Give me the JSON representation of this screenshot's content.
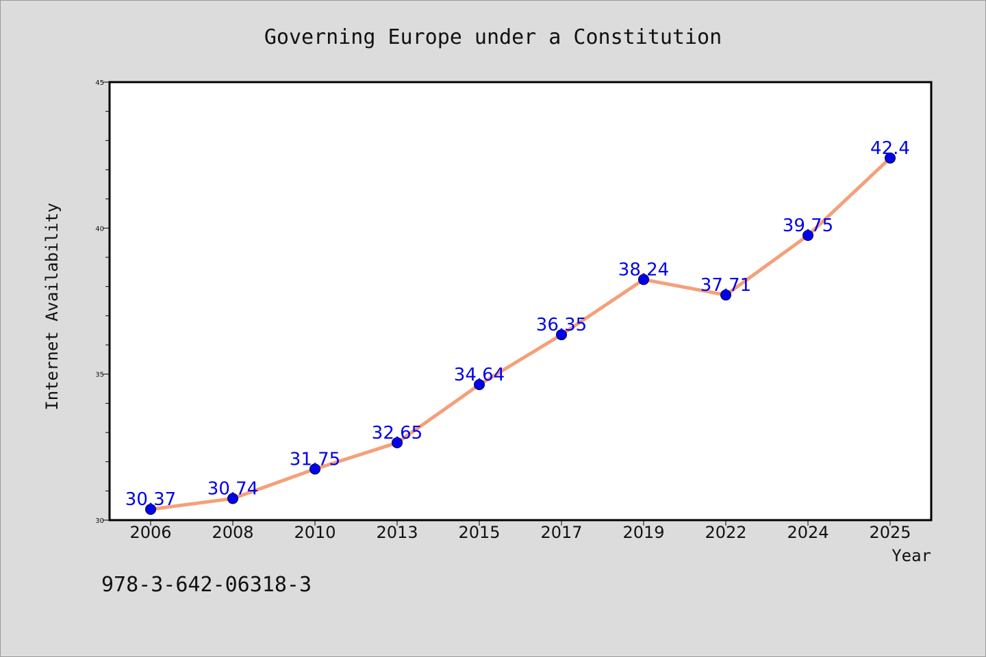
{
  "chart_data": {
    "type": "line",
    "title": "Governing Europe under a Constitution",
    "xlabel": "Year",
    "ylabel": "Internet Availability",
    "categories": [
      "2006",
      "2008",
      "2010",
      "2013",
      "2015",
      "2017",
      "2019",
      "2022",
      "2024",
      "2025"
    ],
    "series": [
      {
        "values": [
          30.37,
          30.74,
          31.75,
          32.65,
          34.64,
          36.35,
          38.24,
          37.71,
          39.75,
          42.4
        ],
        "data_labels": [
          "30.37",
          "30.74",
          "31.75",
          "32.65",
          "34.64",
          "36.35",
          "38.24",
          "37.71",
          "39.75",
          "42.4"
        ]
      }
    ],
    "ylim": [
      30,
      45
    ],
    "y_ticks": [
      30,
      35,
      40,
      45
    ],
    "y_tick_labels": [
      "30",
      "35",
      "40",
      "45"
    ],
    "grid": false,
    "colors": {
      "line": "#f4a07a",
      "marker": "#0000ee",
      "data_label": "#0000ee",
      "background": "#dcdcdc",
      "plot_background": "#ffffff"
    }
  },
  "footnote": "978-3-642-06318-3"
}
